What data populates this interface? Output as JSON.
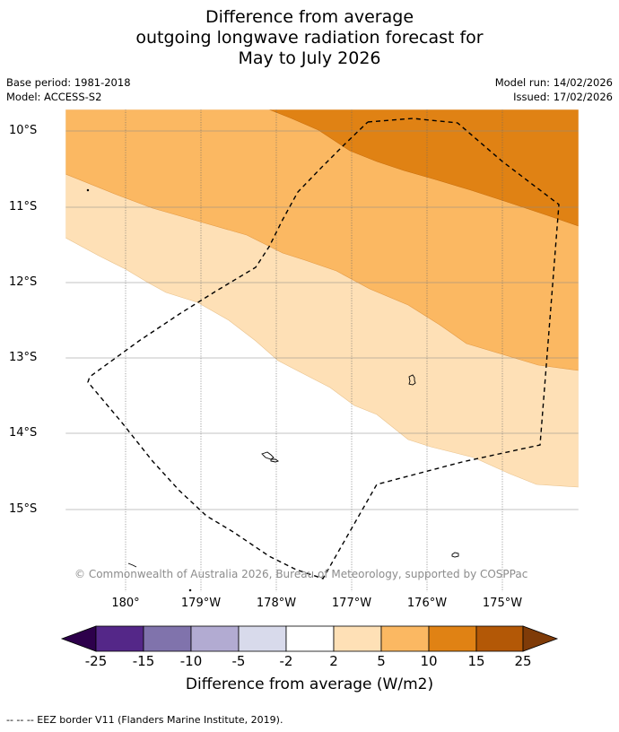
{
  "title": {
    "line1": "Difference from average",
    "line2": "outgoing longwave radiation forecast for",
    "line3": "May to July 2026"
  },
  "meta": {
    "base_period": "Base period: 1981-2018",
    "model": "Model: ACCESS-S2",
    "model_run": "Model run: 14/02/2026",
    "issued": "Issued: 17/02/2026"
  },
  "map": {
    "lat_labels": [
      "10°S",
      "11°S",
      "12°S",
      "13°S",
      "14°S",
      "15°S"
    ],
    "lon_labels": [
      "180°",
      "179°W",
      "178°W",
      "177°W",
      "176°W",
      "175°W"
    ],
    "copyright": "© Commonwealth of Australia 2026, Bureau of Meteorology, supported by COSPPac",
    "regions": [
      {
        "category": "10 to 15",
        "color": "#e08214"
      },
      {
        "category": "5 to 10",
        "color": "#fbb862"
      },
      {
        "category": "2 to 5",
        "color": "#fee0b6"
      },
      {
        "category": "-2 to 2",
        "color": "#ffffff"
      }
    ]
  },
  "colorbar": {
    "ticks": [
      "-25",
      "-15",
      "-10",
      "-5",
      "-2",
      "2",
      "5",
      "10",
      "15",
      "25"
    ],
    "under_color": "#2d004b",
    "over_color": "#7f3b08",
    "colors": [
      "#542788",
      "#8073ac",
      "#b2abd2",
      "#d8daeb",
      "#ffffff",
      "#fee0b6",
      "#fbb862",
      "#e08214",
      "#b35806"
    ],
    "label": "Difference from average (W/m2)"
  },
  "footnote": "--  --  -- EEZ border V11 (Flanders Marine Institute, 2019)."
}
